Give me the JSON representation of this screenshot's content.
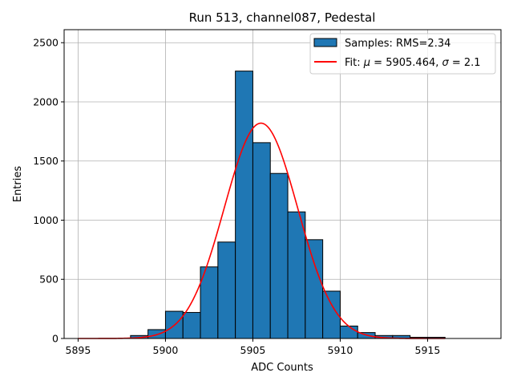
{
  "chart_data": {
    "type": "histogram",
    "title": "Run 513, channel087, Pedestal",
    "xlabel": "ADC Counts",
    "ylabel": "Entries",
    "xlim": [
      5894.2,
      5919.2
    ],
    "ylim": [
      0,
      2610
    ],
    "xticks": [
      5895,
      5900,
      5905,
      5910,
      5915
    ],
    "yticks": [
      0,
      500,
      1000,
      1500,
      2000,
      2500
    ],
    "grid": true,
    "legend_position": "top-right",
    "bin_width": 1,
    "series": [
      {
        "name": "Samples: RMS=2.34",
        "kind": "bars",
        "color": "#1f77b4",
        "edge_color": "#000000",
        "bins": [
          {
            "x": 5898,
            "value": 25
          },
          {
            "x": 5899,
            "value": 75
          },
          {
            "x": 5900,
            "value": 230
          },
          {
            "x": 5901,
            "value": 220
          },
          {
            "x": 5902,
            "value": 605
          },
          {
            "x": 5903,
            "value": 815
          },
          {
            "x": 5904,
            "value": 2260
          },
          {
            "x": 5905,
            "value": 1655
          },
          {
            "x": 5906,
            "value": 1395
          },
          {
            "x": 5907,
            "value": 1070
          },
          {
            "x": 5908,
            "value": 835
          },
          {
            "x": 5909,
            "value": 400
          },
          {
            "x": 5910,
            "value": 105
          },
          {
            "x": 5911,
            "value": 50
          },
          {
            "x": 5912,
            "value": 25
          },
          {
            "x": 5913,
            "value": 25
          },
          {
            "x": 5914,
            "value": 10
          },
          {
            "x": 5915,
            "value": 10
          }
        ]
      },
      {
        "name": "Fit: μ = 5905.464, σ = 2.1",
        "legend_prefix": "Fit: ",
        "legend_mu": "μ",
        "legend_mu_rest": " = 5905.464, ",
        "legend_sigma": "σ",
        "legend_sigma_rest": " = 2.1",
        "kind": "gaussian",
        "color": "#ff0000",
        "mu": 5905.464,
        "sigma": 2.1,
        "amplitude": 1820,
        "x_range": [
          5895,
          5916
        ]
      }
    ]
  }
}
